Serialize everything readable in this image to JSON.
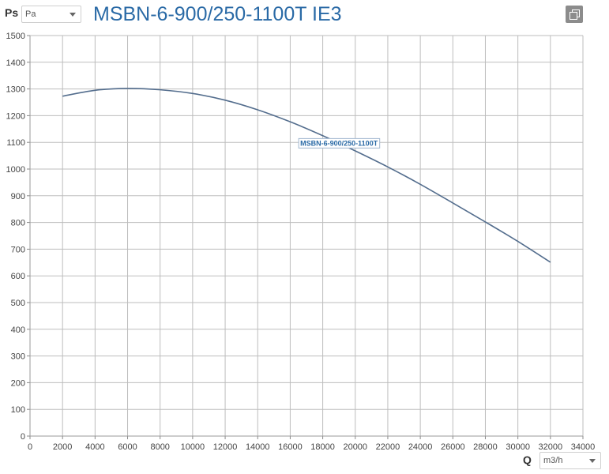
{
  "ylabel": "Ps",
  "ps_unit": {
    "selected": "Pa"
  },
  "title": "MSBN-6-900/250-1100T IE3",
  "xlabel": "Q",
  "q_unit": {
    "selected": "m3/h"
  },
  "icons": {
    "popout": "popout-window-icon",
    "dropdown": "chevron-down-icon"
  },
  "colors": {
    "curve": "#536d8d",
    "title": "#2a6aa6",
    "grid": "#bdbdbd"
  },
  "chart_data": {
    "type": "line",
    "xlim": [
      0,
      34000
    ],
    "ylim": [
      0,
      1500
    ],
    "x_ticks": [
      0,
      2000,
      4000,
      6000,
      8000,
      10000,
      12000,
      14000,
      16000,
      18000,
      20000,
      22000,
      24000,
      26000,
      28000,
      30000,
      32000,
      34000
    ],
    "y_ticks": [
      0,
      100,
      200,
      300,
      400,
      500,
      600,
      700,
      800,
      900,
      1000,
      1100,
      1200,
      1300,
      1400,
      1500
    ],
    "grid": true,
    "series": [
      {
        "name": "MSBN-6-900/250-1100T",
        "x": [
          2000,
          4000,
          6000,
          8000,
          10000,
          12000,
          14000,
          16000,
          18000,
          20000,
          22000,
          24000,
          26000,
          28000,
          30000,
          32000
        ],
        "y": [
          1273,
          1295,
          1302,
          1297,
          1283,
          1258,
          1222,
          1177,
          1125,
          1068,
          1008,
          943,
          873,
          802,
          729,
          651
        ],
        "label_at_x": 19000
      }
    ]
  }
}
